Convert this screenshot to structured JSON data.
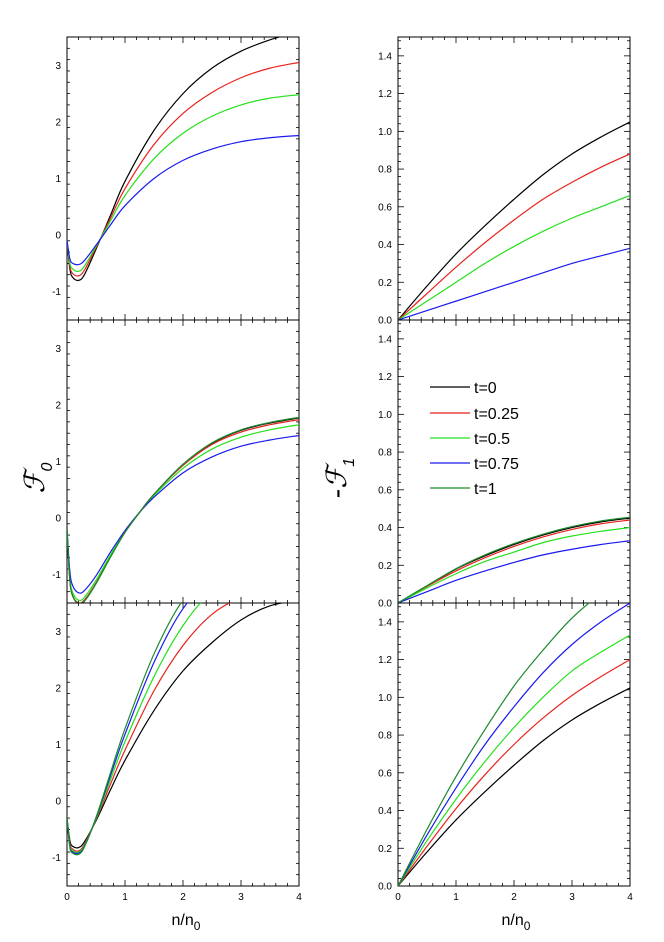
{
  "figure": {
    "ylabel_left": {
      "prefix": "",
      "symbol": "ℱ",
      "subscript": "0"
    },
    "ylabel_right": {
      "prefix": "-",
      "symbol": "ℱ",
      "subscript": "1"
    },
    "xlabel": {
      "main": "n/n",
      "subscript": "0"
    }
  },
  "legend": [
    {
      "label": "t=0",
      "color": "#000000"
    },
    {
      "label": "t=0.25",
      "color": "#e8221d"
    },
    {
      "label": "t=0.5",
      "color": "#24e01b"
    },
    {
      "label": "t=0.75",
      "color": "#1a1aef"
    },
    {
      "label": "t=1",
      "color": "#1b8a2c"
    }
  ],
  "chart_data": [
    {
      "type": "line",
      "panel": "left-top",
      "xlim": [
        0,
        4
      ],
      "ylim": [
        -1.5,
        3.5
      ],
      "xticks": [
        0,
        1,
        2,
        3,
        4
      ],
      "yticks": [
        -1,
        0,
        1,
        2,
        3
      ],
      "x": [
        0,
        0.05,
        0.1,
        0.2,
        0.3,
        0.5,
        0.75,
        1.0,
        1.5,
        2.0,
        2.5,
        3.0,
        3.5,
        4.0
      ],
      "series": [
        {
          "name": "t=0",
          "color": "#000000",
          "values": [
            -0.1,
            -0.6,
            -0.75,
            -0.8,
            -0.7,
            -0.25,
            0.35,
            0.95,
            1.85,
            2.5,
            2.95,
            3.25,
            3.45,
            3.6
          ]
        },
        {
          "name": "t=0.25",
          "color": "#e8221d",
          "values": [
            -0.1,
            -0.55,
            -0.68,
            -0.72,
            -0.62,
            -0.22,
            0.3,
            0.82,
            1.6,
            2.15,
            2.52,
            2.78,
            2.95,
            3.05
          ]
        },
        {
          "name": "t=0.5",
          "color": "#24e01b",
          "values": [
            -0.1,
            -0.5,
            -0.6,
            -0.64,
            -0.55,
            -0.2,
            0.25,
            0.7,
            1.35,
            1.8,
            2.1,
            2.3,
            2.42,
            2.48
          ]
        },
        {
          "name": "t=0.75",
          "color": "#1a1aef",
          "values": [
            -0.1,
            -0.42,
            -0.5,
            -0.52,
            -0.45,
            -0.18,
            0.18,
            0.52,
            1.0,
            1.32,
            1.52,
            1.65,
            1.72,
            1.76
          ]
        }
      ]
    },
    {
      "type": "line",
      "panel": "left-middle",
      "xlim": [
        0,
        4
      ],
      "ylim": [
        -1.5,
        3.5
      ],
      "xticks": [
        0,
        1,
        2,
        3,
        4
      ],
      "yticks": [
        -1,
        0,
        1,
        2,
        3
      ],
      "x": [
        0,
        0.05,
        0.1,
        0.2,
        0.3,
        0.5,
        0.75,
        1.0,
        1.25,
        1.5,
        2.0,
        2.5,
        3.0,
        3.5,
        4.0
      ],
      "series": [
        {
          "name": "t=0",
          "color": "#000000",
          "values": [
            -0.2,
            -1.1,
            -1.38,
            -1.5,
            -1.45,
            -1.15,
            -0.68,
            -0.25,
            0.1,
            0.42,
            0.95,
            1.32,
            1.55,
            1.68,
            1.77
          ]
        },
        {
          "name": "t=0.25",
          "color": "#e8221d",
          "values": [
            -0.2,
            -1.1,
            -1.38,
            -1.5,
            -1.45,
            -1.15,
            -0.68,
            -0.25,
            0.1,
            0.42,
            0.93,
            1.3,
            1.52,
            1.65,
            1.74
          ]
        },
        {
          "name": "t=0.5",
          "color": "#24e01b",
          "values": [
            -0.2,
            -1.05,
            -1.32,
            -1.45,
            -1.4,
            -1.1,
            -0.65,
            -0.24,
            0.1,
            0.4,
            0.88,
            1.22,
            1.43,
            1.56,
            1.65
          ]
        },
        {
          "name": "t=0.75",
          "color": "#1a1aef",
          "values": [
            -0.2,
            -0.95,
            -1.2,
            -1.32,
            -1.28,
            -1.02,
            -0.6,
            -0.22,
            0.1,
            0.37,
            0.8,
            1.08,
            1.27,
            1.38,
            1.46
          ]
        },
        {
          "name": "t=1",
          "color": "#1b8a2c",
          "values": [
            -0.2,
            -1.1,
            -1.38,
            -1.52,
            -1.47,
            -1.16,
            -0.69,
            -0.25,
            0.1,
            0.42,
            0.95,
            1.33,
            1.56,
            1.69,
            1.78
          ]
        }
      ]
    },
    {
      "type": "line",
      "panel": "left-bottom",
      "xlim": [
        0,
        4
      ],
      "ylim": [
        -1.5,
        3.5
      ],
      "xticks": [
        0,
        1,
        2,
        3,
        4
      ],
      "yticks": [
        -1,
        0,
        1,
        2,
        3
      ],
      "xlabel": "n/n₀",
      "x": [
        0,
        0.05,
        0.1,
        0.2,
        0.3,
        0.5,
        0.75,
        1.0,
        1.5,
        2.0,
        2.5,
        3.0,
        3.5,
        4.0
      ],
      "series": [
        {
          "name": "t=0",
          "color": "#000000",
          "values": [
            -0.3,
            -0.7,
            -0.8,
            -0.82,
            -0.72,
            -0.35,
            0.2,
            0.72,
            1.6,
            2.3,
            2.8,
            3.2,
            3.45,
            3.55
          ]
        },
        {
          "name": "t=0.25",
          "color": "#e8221d",
          "values": [
            -0.3,
            -0.75,
            -0.85,
            -0.88,
            -0.76,
            -0.33,
            0.3,
            0.9,
            1.95,
            2.75,
            3.3,
            3.6,
            3.75,
            3.8
          ]
        },
        {
          "name": "t=0.5",
          "color": "#24e01b",
          "values": [
            -0.3,
            -0.78,
            -0.88,
            -0.9,
            -0.78,
            -0.32,
            0.38,
            1.05,
            2.2,
            3.1,
            3.7,
            3.9,
            3.95,
            4.0
          ]
        },
        {
          "name": "t=0.75",
          "color": "#1a1aef",
          "values": [
            -0.3,
            -0.8,
            -0.9,
            -0.92,
            -0.8,
            -0.3,
            0.45,
            1.18,
            2.45,
            3.4,
            3.9,
            4.0,
            4.0,
            4.0
          ]
        },
        {
          "name": "t=1",
          "color": "#1b8a2c",
          "values": [
            -0.3,
            -0.82,
            -0.92,
            -0.94,
            -0.81,
            -0.29,
            0.5,
            1.28,
            2.6,
            3.55,
            4.0,
            4.0,
            4.0,
            4.0
          ]
        }
      ]
    },
    {
      "type": "line",
      "panel": "right-top",
      "xlim": [
        0,
        4
      ],
      "ylim": [
        0,
        1.5
      ],
      "xticks": [
        0,
        1,
        2,
        3,
        4
      ],
      "yticks": [
        0.0,
        0.2,
        0.4,
        0.6,
        0.8,
        1.0,
        1.2,
        1.4
      ],
      "x": [
        0,
        0.5,
        1.0,
        1.5,
        2.0,
        2.5,
        3.0,
        3.5,
        4.0
      ],
      "series": [
        {
          "name": "t=0",
          "color": "#000000",
          "values": [
            0.0,
            0.18,
            0.35,
            0.5,
            0.64,
            0.77,
            0.88,
            0.97,
            1.05
          ]
        },
        {
          "name": "t=0.25",
          "color": "#e8221d",
          "values": [
            0.0,
            0.14,
            0.28,
            0.41,
            0.53,
            0.64,
            0.73,
            0.81,
            0.88
          ]
        },
        {
          "name": "t=0.5",
          "color": "#24e01b",
          "values": [
            0.0,
            0.1,
            0.2,
            0.3,
            0.39,
            0.47,
            0.54,
            0.6,
            0.66
          ]
        },
        {
          "name": "t=0.75",
          "color": "#1a1aef",
          "values": [
            0.0,
            0.05,
            0.1,
            0.15,
            0.2,
            0.25,
            0.3,
            0.34,
            0.38
          ]
        }
      ]
    },
    {
      "type": "line",
      "panel": "right-middle",
      "xlim": [
        0,
        4
      ],
      "ylim": [
        0,
        1.5
      ],
      "xticks": [
        0,
        1,
        2,
        3,
        4
      ],
      "yticks": [
        0.0,
        0.2,
        0.4,
        0.6,
        0.8,
        1.0,
        1.2,
        1.4
      ],
      "x": [
        0,
        0.5,
        1.0,
        1.5,
        2.0,
        2.5,
        3.0,
        3.5,
        4.0
      ],
      "series": [
        {
          "name": "t=0",
          "color": "#000000",
          "values": [
            0.0,
            0.09,
            0.18,
            0.25,
            0.31,
            0.36,
            0.4,
            0.43,
            0.45
          ]
        },
        {
          "name": "t=0.25",
          "color": "#e8221d",
          "values": [
            0.0,
            0.088,
            0.17,
            0.24,
            0.3,
            0.35,
            0.39,
            0.42,
            0.44
          ]
        },
        {
          "name": "t=0.5",
          "color": "#24e01b",
          "values": [
            0.0,
            0.08,
            0.155,
            0.22,
            0.27,
            0.32,
            0.355,
            0.38,
            0.4
          ]
        },
        {
          "name": "t=0.75",
          "color": "#1a1aef",
          "values": [
            0.0,
            0.06,
            0.12,
            0.17,
            0.215,
            0.255,
            0.285,
            0.31,
            0.33
          ]
        },
        {
          "name": "t=1",
          "color": "#1b8a2c",
          "values": [
            0.0,
            0.092,
            0.182,
            0.255,
            0.315,
            0.365,
            0.405,
            0.435,
            0.455
          ]
        }
      ]
    },
    {
      "type": "line",
      "panel": "right-bottom",
      "xlim": [
        0,
        4
      ],
      "ylim": [
        0,
        1.5
      ],
      "xticks": [
        0,
        1,
        2,
        3,
        4
      ],
      "yticks": [
        0.0,
        0.2,
        0.4,
        0.6,
        0.8,
        1.0,
        1.2,
        1.4
      ],
      "xlabel": "n/n₀",
      "x": [
        0,
        0.5,
        1.0,
        1.5,
        2.0,
        2.5,
        3.0,
        3.5,
        4.0
      ],
      "series": [
        {
          "name": "t=0",
          "color": "#000000",
          "values": [
            0.0,
            0.18,
            0.35,
            0.5,
            0.64,
            0.77,
            0.88,
            0.97,
            1.05
          ]
        },
        {
          "name": "t=0.25",
          "color": "#e8221d",
          "values": [
            0.0,
            0.21,
            0.41,
            0.59,
            0.75,
            0.89,
            1.01,
            1.11,
            1.2
          ]
        },
        {
          "name": "t=0.5",
          "color": "#24e01b",
          "values": [
            0.0,
            0.24,
            0.46,
            0.66,
            0.84,
            1.0,
            1.14,
            1.24,
            1.33
          ]
        },
        {
          "name": "t=0.75",
          "color": "#1a1aef",
          "values": [
            0.0,
            0.27,
            0.52,
            0.75,
            0.95,
            1.13,
            1.28,
            1.4,
            1.5
          ]
        },
        {
          "name": "t=1",
          "color": "#1b8a2c",
          "values": [
            0.0,
            0.3,
            0.58,
            0.83,
            1.06,
            1.25,
            1.42,
            1.55,
            1.65
          ]
        }
      ]
    }
  ]
}
